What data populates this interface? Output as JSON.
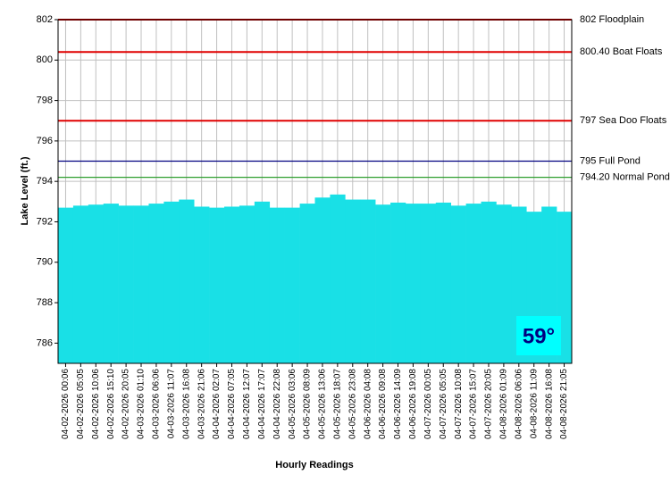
{
  "chart_data": {
    "type": "bar",
    "y_label": "Lake Level (ft.)",
    "x_label": "Hourly Readings",
    "categories": [
      "04-02-2026 00:06",
      "04-02-2026 05:05",
      "04-02-2026 10:06",
      "04-02-2026 15:10",
      "04-02-2026 20:05",
      "04-03-2026 01:10",
      "04-03-2026 06:06",
      "04-03-2026 11:07",
      "04-03-2026 16:08",
      "04-03-2026 21:06",
      "04-04-2026 02:07",
      "04-04-2026 07:05",
      "04-04-2026 12:07",
      "04-04-2026 17:07",
      "04-04-2026 22:08",
      "04-05-2026 03:06",
      "04-05-2026 08:09",
      "04-05-2026 13:06",
      "04-05-2026 18:07",
      "04-05-2026 23:08",
      "04-06-2026 04:08",
      "04-06-2026 09:08",
      "04-06-2026 14:09",
      "04-06-2026 19:08",
      "04-07-2026 00:05",
      "04-07-2026 05:05",
      "04-07-2026 10:08",
      "04-07-2026 15:07",
      "04-07-2026 20:05",
      "04-08-2026 01:09",
      "04-08-2026 06:06",
      "04-08-2026 11:09",
      "04-08-2026 16:08",
      "04-08-2026 21:05"
    ],
    "values": [
      792.7,
      792.8,
      792.85,
      792.9,
      792.8,
      792.8,
      792.9,
      793.0,
      793.1,
      792.75,
      792.7,
      792.75,
      792.8,
      793.0,
      792.7,
      792.7,
      792.9,
      793.2,
      793.35,
      793.1,
      793.1,
      792.85,
      792.95,
      792.9,
      792.9,
      792.95,
      792.8,
      792.9,
      793.0,
      792.85,
      792.75,
      792.5,
      792.75,
      792.5
    ],
    "color": "#19e0e6",
    "ylim": [
      785,
      802
    ],
    "yticks": [
      786,
      788,
      790,
      792,
      794,
      796,
      798,
      800,
      802
    ],
    "grid": true,
    "reference_lines": [
      {
        "value": 802,
        "label": "802 Floodplain",
        "color": "#e00000"
      },
      {
        "value": 800.4,
        "label": "800.40 Boat Floats",
        "color": "#e00000"
      },
      {
        "value": 797,
        "label": "797 Sea Doo Floats",
        "color": "#e00000"
      },
      {
        "value": 795,
        "label": "795 Full Pond",
        "color": "#000080"
      },
      {
        "value": 794.2,
        "label": "794.20 Normal Pond",
        "color": "#2e9e2e"
      }
    ],
    "badge": "59°"
  }
}
